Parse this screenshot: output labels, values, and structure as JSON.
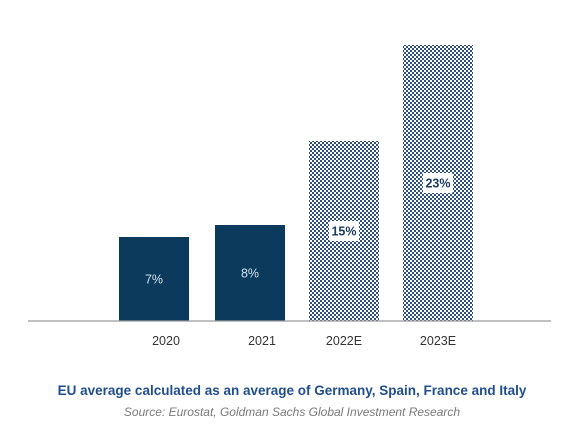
{
  "chart_data": {
    "type": "bar",
    "title": "",
    "xlabel": "",
    "ylabel": "",
    "categories": [
      "2020",
      "2021",
      "2022E",
      "2023E"
    ],
    "values": [
      7,
      8,
      15,
      23
    ],
    "data_labels": [
      "7%",
      "8%",
      "15%",
      "23%"
    ],
    "ylim": [
      0,
      24
    ],
    "grid": false,
    "legend": "none",
    "bar_styles": [
      "solid",
      "solid",
      "hatched",
      "hatched"
    ],
    "colors": {
      "actual": "#0b3a5c",
      "estimate": "#2b4f7e",
      "axis": "#9a9a9a",
      "tick_text": "#333333",
      "label_text_actual": "#cfe3f3",
      "label_text_estimate": "#1a3a5c"
    }
  },
  "caption": {
    "main": "EU average calculated as an average of Germany, Spain, France and Italy",
    "source": "Source: Eurostat, Goldman Sachs Global Investment Research"
  }
}
